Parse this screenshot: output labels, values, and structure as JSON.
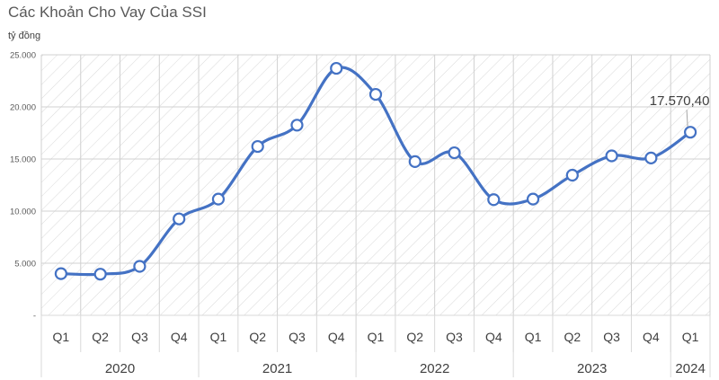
{
  "chart_data": {
    "type": "line",
    "title": "Các Khoản Cho Vay Của SSI",
    "unit_label": "tỷ đồng",
    "ylim": [
      0,
      25000
    ],
    "y_ticks": [
      "-",
      "5.000",
      "10.000",
      "15.000",
      "20.000",
      "25.000"
    ],
    "y_tick_values": [
      0,
      5000,
      10000,
      15000,
      20000,
      25000
    ],
    "grid": true,
    "grid_pattern": "diagonal hatch",
    "categories": [
      "Q1",
      "Q2",
      "Q3",
      "Q4",
      "Q1",
      "Q2",
      "Q3",
      "Q4",
      "Q1",
      "Q2",
      "Q3",
      "Q4",
      "Q1",
      "Q2",
      "Q3",
      "Q4",
      "Q1"
    ],
    "years": [
      {
        "label": "2020",
        "span": 4
      },
      {
        "label": "2021",
        "span": 4
      },
      {
        "label": "2022",
        "span": 4
      },
      {
        "label": "2023",
        "span": 4
      },
      {
        "label": "2024",
        "span": 1
      }
    ],
    "series": [
      {
        "values": [
          4000,
          3950,
          4700,
          9250,
          11150,
          16200,
          18250,
          23700,
          21200,
          14750,
          15600,
          11100,
          11150,
          13450,
          15300,
          15100,
          17570.4
        ],
        "color": "#4472C4"
      }
    ],
    "annotations": [
      {
        "point_index": 16,
        "text": "17.570,40"
      }
    ]
  }
}
